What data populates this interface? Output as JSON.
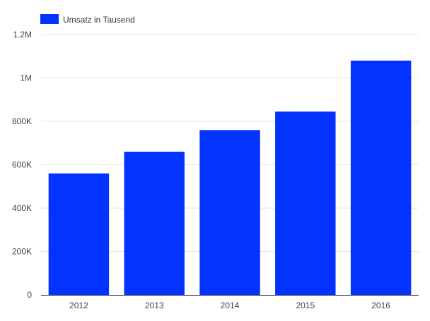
{
  "chart_data": {
    "type": "bar",
    "categories": [
      "2012",
      "2013",
      "2014",
      "2015",
      "2016"
    ],
    "series": [
      {
        "name": "Umsatz in Tausend",
        "values": [
          560000,
          660000,
          760000,
          845000,
          1080000
        ],
        "color": "#0433ff"
      }
    ],
    "ylim": [
      0,
      1200000
    ],
    "y_ticks": [
      0,
      200000,
      400000,
      600000,
      800000,
      1000000,
      1200000
    ],
    "y_tick_labels": [
      "0",
      "200K",
      "400K",
      "600K",
      "800K",
      "1M",
      "1.2M"
    ],
    "grid": true,
    "legend_position": "top-left",
    "title": "",
    "xlabel": "",
    "ylabel": ""
  }
}
